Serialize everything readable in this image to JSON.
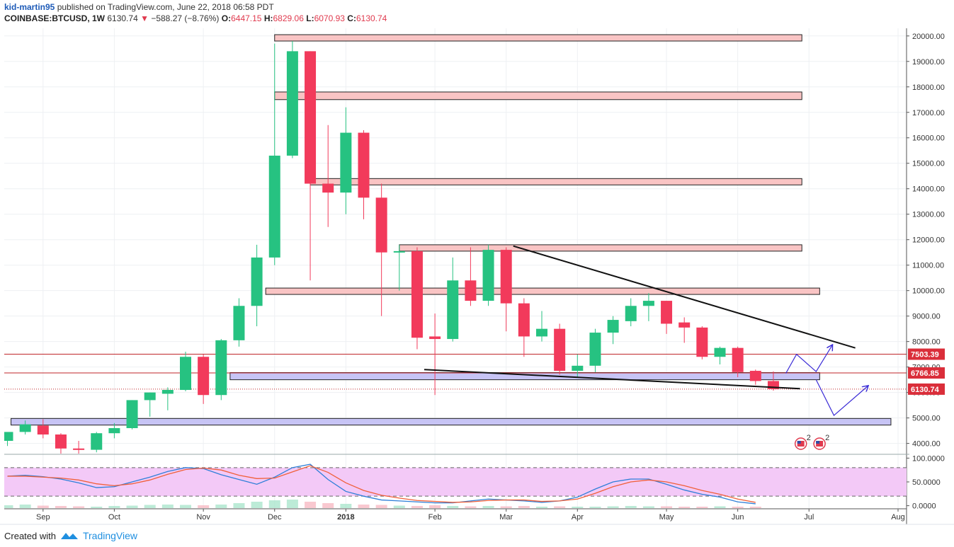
{
  "header": {
    "author": "kid-martin95",
    "published_text": " published on TradingView.com, June 22, 2018 06:58 PDT",
    "symbol": "COINBASE:BTCUSD, 1W",
    "last": "6130.74",
    "change": "−588.27 (−8.76%)",
    "open_label": "O:",
    "open": "6447.15",
    "high_label": "H:",
    "high": "6829.06",
    "low_label": "L:",
    "low": "6070.93",
    "close_label": "C:",
    "close": "6130.74"
  },
  "footer": {
    "created_with": "Created with",
    "brand": "TradingView"
  },
  "colors": {
    "up": "#26c281",
    "down": "#f23a5b",
    "zone_red": "#f9c4c4",
    "zone_blue": "#c7c4f5",
    "osc_band": "#f3c9f7"
  },
  "chart_data": {
    "type": "candlestick",
    "timeframe": "1W",
    "ylim": [
      3600,
      20300
    ],
    "y_ticks": [
      4000,
      5000,
      6000,
      7000,
      8000,
      9000,
      10000,
      11000,
      12000,
      13000,
      14000,
      15000,
      16000,
      17000,
      18000,
      19000,
      20000
    ],
    "y_tick_labels": [
      "4000.00",
      "5000.00",
      "6000.00",
      "7000.00",
      "8000.00",
      "9000.00",
      "10000.00",
      "11000.00",
      "12000.00",
      "13000.00",
      "14000.00",
      "15000.00",
      "16000.00",
      "17000.00",
      "18000.00",
      "19000.00",
      "20000.00"
    ],
    "x_labels": [
      {
        "label": "Sep",
        "week": 2
      },
      {
        "label": "Oct",
        "week": 6
      },
      {
        "label": "Nov",
        "week": 11
      },
      {
        "label": "Dec",
        "week": 15
      },
      {
        "label": "2018",
        "week": 19
      },
      {
        "label": "Feb",
        "week": 24
      },
      {
        "label": "Mar",
        "week": 28
      },
      {
        "label": "Apr",
        "week": 32
      },
      {
        "label": "May",
        "week": 37
      },
      {
        "label": "Jun",
        "week": 41
      },
      {
        "label": "Jul",
        "week": 45
      },
      {
        "label": "Aug",
        "week": 50
      }
    ],
    "candles": [
      {
        "o": 4100,
        "h": 4400,
        "l": 3900,
        "c": 4450
      },
      {
        "o": 4450,
        "h": 4900,
        "l": 4350,
        "c": 4750
      },
      {
        "o": 4700,
        "h": 4950,
        "l": 4200,
        "c": 4350
      },
      {
        "o": 4350,
        "h": 4400,
        "l": 3600,
        "c": 3800
      },
      {
        "o": 3800,
        "h": 4100,
        "l": 3500,
        "c": 3750
      },
      {
        "o": 3750,
        "h": 4450,
        "l": 3650,
        "c": 4400
      },
      {
        "o": 4400,
        "h": 4800,
        "l": 4200,
        "c": 4600
      },
      {
        "o": 4600,
        "h": 5700,
        "l": 4550,
        "c": 5700
      },
      {
        "o": 5700,
        "h": 6000,
        "l": 5050,
        "c": 6000
      },
      {
        "o": 5950,
        "h": 6200,
        "l": 5300,
        "c": 6100
      },
      {
        "o": 6100,
        "h": 7600,
        "l": 6050,
        "c": 7400
      },
      {
        "o": 7400,
        "h": 7500,
        "l": 5550,
        "c": 5900
      },
      {
        "o": 5900,
        "h": 8100,
        "l": 5700,
        "c": 8050
      },
      {
        "o": 8050,
        "h": 9700,
        "l": 7800,
        "c": 9400
      },
      {
        "o": 9400,
        "h": 11800,
        "l": 8600,
        "c": 11300
      },
      {
        "o": 11300,
        "h": 19700,
        "l": 11000,
        "c": 15300
      },
      {
        "o": 15300,
        "h": 19800,
        "l": 15200,
        "c": 19400
      },
      {
        "o": 19400,
        "h": 19400,
        "l": 10400,
        "c": 14200
      },
      {
        "o": 14200,
        "h": 16500,
        "l": 12500,
        "c": 13850
      },
      {
        "o": 13850,
        "h": 17200,
        "l": 13000,
        "c": 16200
      },
      {
        "o": 16200,
        "h": 16300,
        "l": 12800,
        "c": 13650
      },
      {
        "o": 13650,
        "h": 14200,
        "l": 9000,
        "c": 11500
      },
      {
        "o": 11500,
        "h": 11800,
        "l": 10000,
        "c": 11550
      },
      {
        "o": 11550,
        "h": 11700,
        "l": 7700,
        "c": 8150
      },
      {
        "o": 8200,
        "h": 9100,
        "l": 5900,
        "c": 8100
      },
      {
        "o": 8100,
        "h": 11300,
        "l": 8000,
        "c": 10400
      },
      {
        "o": 10400,
        "h": 11700,
        "l": 9400,
        "c": 9600
      },
      {
        "o": 9600,
        "h": 11800,
        "l": 9400,
        "c": 11600
      },
      {
        "o": 11600,
        "h": 11700,
        "l": 8400,
        "c": 9500
      },
      {
        "o": 9500,
        "h": 9700,
        "l": 7400,
        "c": 8200
      },
      {
        "o": 8200,
        "h": 9200,
        "l": 8000,
        "c": 8500
      },
      {
        "o": 8500,
        "h": 8700,
        "l": 6700,
        "c": 6850
      },
      {
        "o": 6850,
        "h": 7500,
        "l": 6600,
        "c": 7050
      },
      {
        "o": 7050,
        "h": 8500,
        "l": 6800,
        "c": 8350
      },
      {
        "o": 8350,
        "h": 9000,
        "l": 7900,
        "c": 8850
      },
      {
        "o": 8800,
        "h": 9700,
        "l": 8600,
        "c": 9400
      },
      {
        "o": 9400,
        "h": 9900,
        "l": 8800,
        "c": 9600
      },
      {
        "o": 9600,
        "h": 9600,
        "l": 8300,
        "c": 8700
      },
      {
        "o": 8750,
        "h": 8950,
        "l": 7950,
        "c": 8550
      },
      {
        "o": 8550,
        "h": 8600,
        "l": 7300,
        "c": 7400
      },
      {
        "o": 7400,
        "h": 7800,
        "l": 7100,
        "c": 7750
      },
      {
        "o": 7750,
        "h": 7800,
        "l": 6600,
        "c": 6800
      },
      {
        "o": 6850,
        "h": 6900,
        "l": 6300,
        "c": 6450
      },
      {
        "o": 6450,
        "h": 6829,
        "l": 6071,
        "c": 6131
      }
    ],
    "zones": [
      {
        "color": "red",
        "from_week": 15,
        "to_week": 44.6,
        "low": 19800,
        "high": 20050
      },
      {
        "color": "red",
        "from_week": 15,
        "to_week": 44.6,
        "low": 17500,
        "high": 17800
      },
      {
        "color": "red",
        "from_week": 17,
        "to_week": 44.6,
        "low": 14150,
        "high": 14400
      },
      {
        "color": "red",
        "from_week": 22,
        "to_week": 44.6,
        "low": 11550,
        "high": 11800
      },
      {
        "color": "red",
        "from_week": 14.5,
        "to_week": 45.6,
        "low": 9850,
        "high": 10100
      },
      {
        "color": "blue",
        "from_week": 12.5,
        "to_week": 45.6,
        "low": 6500,
        "high": 6780
      },
      {
        "color": "blue",
        "from_week": 0.2,
        "to_week": 49.6,
        "low": 4720,
        "high": 4980
      }
    ],
    "horizontal_lines": [
      {
        "value": 7503.39,
        "label": "7503.39",
        "style": "solid"
      },
      {
        "value": 6766.85,
        "label": "6766.85",
        "style": "solid"
      },
      {
        "value": 6130.74,
        "label": "6130.74",
        "style": "dotted"
      }
    ],
    "trend_lines": [
      {
        "from": {
          "week": 28.4,
          "value": 11750
        },
        "to": {
          "week": 47.6,
          "value": 7750
        }
      },
      {
        "from": {
          "week": 23.4,
          "value": 6900
        },
        "to": {
          "week": 44.5,
          "value": 6150
        }
      }
    ],
    "projection_paths": [
      [
        {
          "week": 43.7,
          "value": 6750
        },
        {
          "week": 44.3,
          "value": 7500
        },
        {
          "week": 45.4,
          "value": 6820
        },
        {
          "week": 46.3,
          "value": 7850
        }
      ],
      [
        {
          "week": 45.4,
          "value": 6500
        },
        {
          "week": 46.4,
          "value": 5100
        },
        {
          "week": 48.3,
          "value": 6250
        }
      ]
    ],
    "event_marker": {
      "week": 44.7,
      "count_label": "2"
    },
    "oscillator": {
      "ylim": [
        -5,
        108
      ],
      "y_ticks": [
        0,
        50,
        100
      ],
      "y_tick_labels": [
        "0.0000",
        "50.0000",
        "100.0000"
      ],
      "band": [
        20,
        80
      ],
      "k": [
        62,
        64,
        61,
        56,
        48,
        38,
        40,
        50,
        60,
        72,
        80,
        78,
        65,
        55,
        45,
        60,
        80,
        87,
        55,
        30,
        20,
        12,
        10,
        8,
        6,
        6,
        10,
        14,
        12,
        10,
        7,
        10,
        18,
        35,
        50,
        56,
        56,
        45,
        33,
        24,
        18,
        8,
        4
      ],
      "d": [
        62,
        62,
        60,
        58,
        54,
        46,
        42,
        46,
        54,
        66,
        76,
        79,
        75,
        64,
        57,
        58,
        71,
        84,
        70,
        48,
        32,
        22,
        16,
        11,
        9,
        7,
        8,
        11,
        12,
        12,
        9,
        10,
        14,
        26,
        40,
        50,
        54,
        50,
        42,
        32,
        24,
        14,
        7
      ],
      "volume": [
        8,
        10,
        7,
        6,
        5,
        4,
        6,
        7,
        9,
        10,
        9,
        8,
        10,
        14,
        18,
        22,
        24,
        18,
        14,
        12,
        10,
        9,
        7,
        6,
        8,
        6,
        5,
        6,
        5,
        6,
        4,
        5,
        4,
        4,
        5,
        6,
        5,
        5,
        4,
        4,
        5,
        4,
        4
      ]
    }
  }
}
